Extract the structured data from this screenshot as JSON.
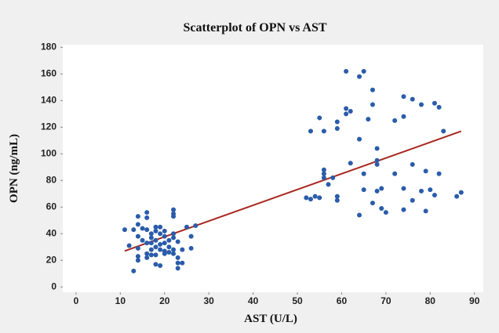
{
  "chart_data": {
    "type": "scatter",
    "title": "Scatterplot of OPN vs AST",
    "x_label": "AST (U/L)",
    "y_label": "OPN (ng/mL)",
    "xlim": [
      -3,
      92
    ],
    "ylim": [
      -4,
      182
    ],
    "xticks": [
      0,
      10,
      20,
      30,
      40,
      50,
      60,
      70,
      80,
      90
    ],
    "yticks": [
      0,
      20,
      40,
      60,
      80,
      100,
      120,
      140,
      160,
      180
    ],
    "series": [
      {
        "color": "#2a5caa",
        "x": [
          11,
          12,
          13,
          13,
          14,
          14,
          14,
          14,
          14,
          14,
          15,
          15,
          16,
          16,
          16,
          16,
          16,
          16,
          17,
          17,
          17,
          17,
          17,
          18,
          18,
          18,
          18,
          18,
          18,
          19,
          19,
          19,
          19,
          19,
          20,
          20,
          20,
          20,
          20,
          21,
          21,
          21,
          22,
          22,
          22,
          22,
          22,
          22,
          22,
          23,
          23,
          23,
          23,
          24,
          24,
          25,
          26,
          26,
          27,
          52,
          53,
          53,
          54,
          55,
          55,
          56,
          56,
          56,
          56,
          57,
          58,
          59,
          59,
          59,
          59,
          61,
          61,
          61,
          62,
          62,
          64,
          64,
          64,
          65,
          65,
          65,
          66,
          67,
          67,
          67,
          68,
          68,
          68,
          68,
          69,
          69,
          70,
          72,
          72,
          74,
          74,
          74,
          74,
          76,
          76,
          76,
          78,
          78,
          79,
          79,
          80,
          81,
          81,
          82,
          82,
          83,
          86,
          87
        ],
        "values": [
          43,
          31,
          12,
          43,
          53,
          47,
          38,
          29,
          23,
          20,
          44,
          35,
          56,
          52,
          43,
          33,
          25,
          22,
          40,
          37,
          33,
          28,
          24,
          45,
          42,
          35,
          30,
          24,
          17,
          45,
          40,
          32,
          28,
          16,
          42,
          38,
          33,
          27,
          25,
          35,
          30,
          26,
          58,
          55,
          53,
          40,
          37,
          28,
          25,
          34,
          22,
          18,
          14,
          18,
          28,
          45,
          38,
          29,
          46,
          67,
          66,
          117,
          68,
          127,
          67,
          117,
          88,
          85,
          82,
          77,
          82,
          124,
          119,
          68,
          65,
          162,
          134,
          130,
          132,
          93,
          158,
          111,
          54,
          162,
          85,
          73,
          126,
          148,
          137,
          63,
          104,
          95,
          92,
          72,
          74,
          59,
          56,
          125,
          85,
          143,
          128,
          74,
          58,
          141,
          92,
          65,
          137,
          72,
          87,
          57,
          73,
          138,
          69,
          135,
          85,
          117,
          68,
          71
        ]
      }
    ],
    "trend": {
      "color": "#a8281e",
      "x": [
        11,
        87
      ],
      "values": [
        27,
        117
      ]
    }
  }
}
